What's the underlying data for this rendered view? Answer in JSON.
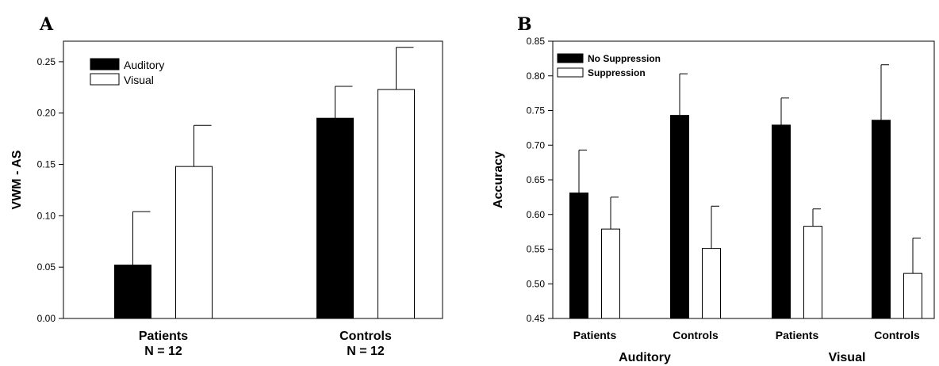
{
  "chart_data": [
    {
      "type": "bar",
      "panel": "A",
      "ylabel": "VWM - AS",
      "ylim": [
        0,
        0.27
      ],
      "yticks": [
        "0.00",
        "0.05",
        "0.10",
        "0.15",
        "0.20",
        "0.25"
      ],
      "categories": [
        {
          "name": "Patients",
          "sub": "N = 12"
        },
        {
          "name": "Controls",
          "sub": "N = 12"
        }
      ],
      "series": [
        {
          "name": "Auditory",
          "color": "#000000",
          "values": [
            0.052,
            0.195
          ],
          "errors": [
            0.052,
            0.031
          ]
        },
        {
          "name": "Visual",
          "color": "#ffffff",
          "values": [
            0.148,
            0.223
          ],
          "errors": [
            0.04,
            0.041
          ]
        }
      ],
      "legend": "top-left",
      "grid": false
    },
    {
      "type": "bar",
      "panel": "B",
      "ylabel": "Accuracy",
      "ylim": [
        0.45,
        0.85
      ],
      "yticks": [
        "0.45",
        "0.50",
        "0.55",
        "0.60",
        "0.65",
        "0.70",
        "0.75",
        "0.80",
        "0.85"
      ],
      "categories": [
        "Patients",
        "Controls",
        "Patients",
        "Controls"
      ],
      "groups": [
        "Auditory",
        "Visual"
      ],
      "series": [
        {
          "name": "No Suppression",
          "color": "#000000",
          "values": [
            0.631,
            0.743,
            0.729,
            0.736
          ],
          "errors": [
            0.062,
            0.06,
            0.039,
            0.08
          ]
        },
        {
          "name": "Suppression",
          "color": "#ffffff",
          "values": [
            0.579,
            0.551,
            0.583,
            0.515
          ],
          "errors": [
            0.046,
            0.061,
            0.025,
            0.051
          ]
        }
      ],
      "legend": "top-left",
      "grid": false
    }
  ]
}
